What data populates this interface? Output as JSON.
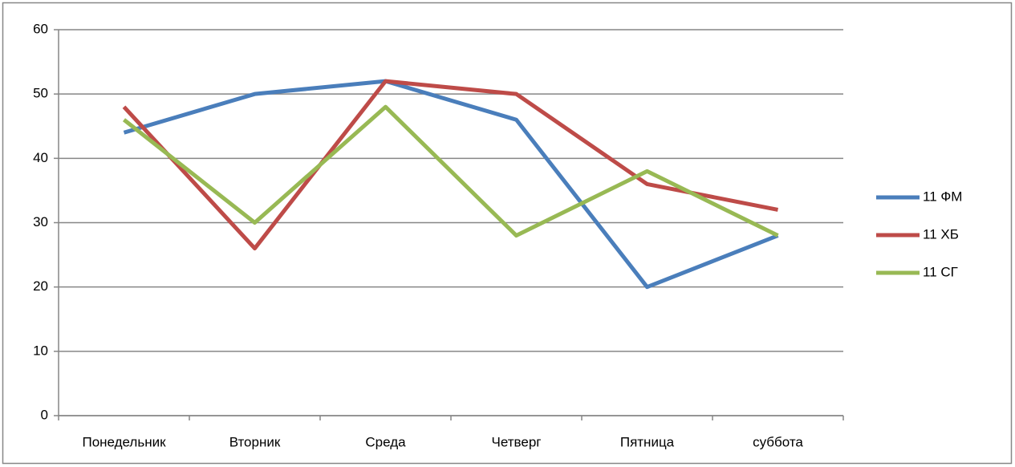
{
  "chart_data": {
    "type": "line",
    "categories": [
      "Понедельник",
      "Вторник",
      "Среда",
      "Четверг",
      "Пятница",
      "суббота"
    ],
    "series": [
      {
        "name": "11 ФМ",
        "color": "#4a7ebb",
        "values": [
          44,
          50,
          52,
          46,
          20,
          28
        ]
      },
      {
        "name": "11 ХБ",
        "color": "#be4b48",
        "values": [
          48,
          26,
          52,
          50,
          36,
          32
        ]
      },
      {
        "name": "11 СГ",
        "color": "#98b954",
        "values": [
          46,
          30,
          48,
          28,
          38,
          28
        ]
      }
    ],
    "ylim": [
      0,
      60
    ],
    "yticks": [
      0,
      10,
      20,
      30,
      40,
      50,
      60
    ],
    "grid": true,
    "legend": "right"
  }
}
